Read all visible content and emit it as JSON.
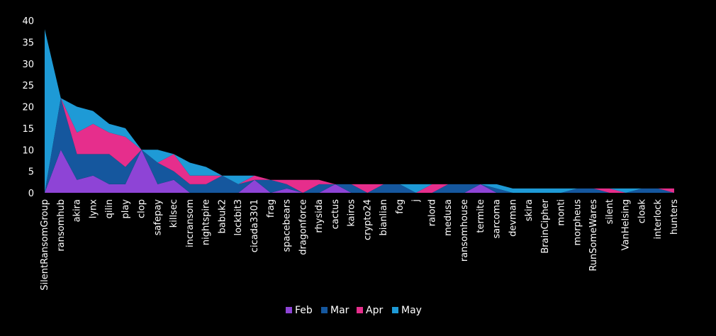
{
  "chart_data": {
    "type": "area",
    "stacked": true,
    "categories": [
      "SilentRansomGroup",
      "ransomhub",
      "akira",
      "lynx",
      "qilin",
      "play",
      "clop",
      "safepay",
      "killsec",
      "incransom",
      "nightspire",
      "babuk2",
      "lockbit3",
      "cicada3301",
      "frag",
      "spacebears",
      "dragonforce",
      "rhysida",
      "cactus",
      "kairos",
      "crypto24",
      "bianlian",
      "fog",
      "j",
      "ralord",
      "medusa",
      "ransomhouse",
      "termite",
      "sarcoma",
      "devman",
      "skira",
      "BrainCipher",
      "monti",
      "morpheus",
      "RunSomeWares",
      "silent",
      "VanHelsing",
      "cloak",
      "interlock",
      "hunters"
    ],
    "series": [
      {
        "name": "Feb",
        "color": "#8e44d6",
        "values": [
          0,
          10,
          3,
          4,
          2,
          2,
          10,
          2,
          3,
          0,
          0,
          0,
          0,
          3,
          0,
          1,
          0,
          0,
          2,
          0,
          0,
          0,
          0,
          0,
          0,
          0,
          0,
          2,
          0,
          0,
          0,
          0,
          0,
          0,
          0,
          0,
          0,
          0,
          0,
          0
        ]
      },
      {
        "name": "Mar",
        "color": "#15579e",
        "values": [
          0,
          12,
          6,
          5,
          7,
          4,
          0,
          5,
          2,
          2,
          2,
          4,
          2,
          0,
          3,
          1,
          0,
          2,
          0,
          2,
          0,
          2,
          2,
          0,
          0,
          2,
          2,
          0,
          1,
          0,
          0,
          0,
          0,
          1,
          1,
          0,
          0,
          1,
          1,
          0
        ]
      },
      {
        "name": "Apr",
        "color": "#e62e8c",
        "values": [
          0,
          0,
          5,
          7,
          5,
          7,
          0,
          0,
          4,
          2,
          2,
          0,
          0,
          1,
          0,
          1,
          3,
          1,
          0,
          0,
          2,
          0,
          0,
          0,
          2,
          0,
          0,
          0,
          0,
          0,
          0,
          0,
          0,
          0,
          0,
          1,
          0,
          0,
          0,
          1
        ]
      },
      {
        "name": "May",
        "color": "#1e9ad6",
        "values": [
          38,
          0,
          6,
          3,
          2,
          2,
          0,
          3,
          0,
          3,
          2,
          0,
          2,
          0,
          0,
          0,
          0,
          0,
          0,
          0,
          0,
          0,
          0,
          2,
          0,
          0,
          0,
          0,
          1,
          1,
          1,
          1,
          1,
          0,
          0,
          0,
          1,
          0,
          0,
          0
        ]
      }
    ],
    "ylim": [
      0,
      40
    ],
    "yticks": [
      0,
      5,
      10,
      15,
      20,
      25,
      30,
      35,
      40
    ],
    "legend_position": "bottom",
    "grid": false
  }
}
